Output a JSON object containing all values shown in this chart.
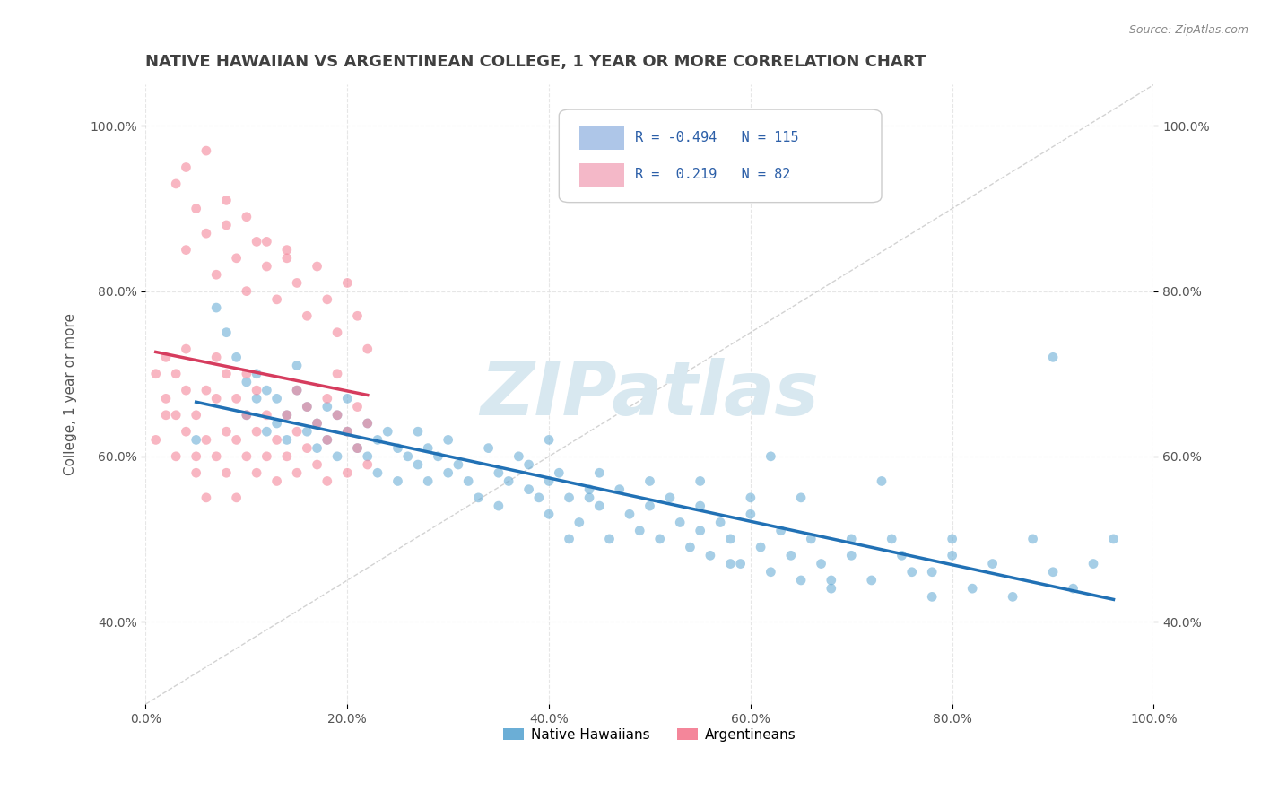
{
  "title": "NATIVE HAWAIIAN VS ARGENTINEAN COLLEGE, 1 YEAR OR MORE CORRELATION CHART",
  "source_text": "Source: ZipAtlas.com",
  "xlabel_bottom": "",
  "ylabel": "College, 1 year or more",
  "x_tick_labels": [
    "0.0%",
    "20.0%",
    "40.0%",
    "60.0%",
    "80.0%",
    "100.0%"
  ],
  "y_tick_labels_left": [
    "40.0%",
    "60.0%",
    "80.0%",
    "100.0%"
  ],
  "y_tick_labels_right": [
    "40.0%",
    "60.0%",
    "80.0%",
    "100.0%"
  ],
  "legend_labels": [
    "Native Hawaiians",
    "Argentineans"
  ],
  "legend_box_colors": [
    "#aec6e8",
    "#f4b8c8"
  ],
  "R_blue": -0.494,
  "N_blue": 115,
  "R_pink": 0.219,
  "N_pink": 82,
  "blue_color": "#6baed6",
  "pink_color": "#f4869a",
  "blue_line_color": "#2171b5",
  "pink_line_color": "#d63c5e",
  "ref_line_color": "#c0c0c0",
  "grid_color": "#e0e0e0",
  "title_color": "#404040",
  "legend_text_color": "#2c5fa8",
  "background_color": "#ffffff",
  "watermark_text": "ZIPatlas",
  "watermark_color": "#d8e8f0",
  "xlim": [
    0.0,
    1.0
  ],
  "ylim": [
    0.3,
    1.05
  ],
  "blue_scatter_x": [
    0.05,
    0.07,
    0.08,
    0.09,
    0.1,
    0.1,
    0.11,
    0.11,
    0.12,
    0.12,
    0.13,
    0.13,
    0.14,
    0.14,
    0.15,
    0.15,
    0.16,
    0.16,
    0.17,
    0.17,
    0.18,
    0.18,
    0.19,
    0.19,
    0.2,
    0.2,
    0.21,
    0.22,
    0.22,
    0.23,
    0.23,
    0.24,
    0.25,
    0.25,
    0.26,
    0.27,
    0.27,
    0.28,
    0.28,
    0.29,
    0.3,
    0.3,
    0.31,
    0.32,
    0.33,
    0.34,
    0.35,
    0.35,
    0.36,
    0.37,
    0.38,
    0.38,
    0.39,
    0.4,
    0.4,
    0.41,
    0.42,
    0.43,
    0.44,
    0.45,
    0.45,
    0.46,
    0.47,
    0.48,
    0.49,
    0.5,
    0.5,
    0.51,
    0.52,
    0.53,
    0.54,
    0.55,
    0.55,
    0.56,
    0.57,
    0.58,
    0.59,
    0.6,
    0.61,
    0.62,
    0.63,
    0.64,
    0.65,
    0.66,
    0.67,
    0.68,
    0.7,
    0.72,
    0.74,
    0.76,
    0.78,
    0.8,
    0.82,
    0.84,
    0.86,
    0.88,
    0.9,
    0.92,
    0.94,
    0.96,
    0.4,
    0.42,
    0.44,
    0.55,
    0.58,
    0.6,
    0.62,
    0.65,
    0.68,
    0.7,
    0.73,
    0.75,
    0.78,
    0.8,
    0.9
  ],
  "blue_scatter_y": [
    0.62,
    0.78,
    0.75,
    0.72,
    0.69,
    0.65,
    0.67,
    0.7,
    0.63,
    0.68,
    0.64,
    0.67,
    0.65,
    0.62,
    0.68,
    0.71,
    0.63,
    0.66,
    0.64,
    0.61,
    0.66,
    0.62,
    0.6,
    0.65,
    0.63,
    0.67,
    0.61,
    0.64,
    0.6,
    0.62,
    0.58,
    0.63,
    0.61,
    0.57,
    0.6,
    0.63,
    0.59,
    0.61,
    0.57,
    0.6,
    0.58,
    0.62,
    0.59,
    0.57,
    0.55,
    0.61,
    0.58,
    0.54,
    0.57,
    0.6,
    0.56,
    0.59,
    0.55,
    0.57,
    0.53,
    0.58,
    0.55,
    0.52,
    0.56,
    0.54,
    0.58,
    0.5,
    0.56,
    0.53,
    0.51,
    0.54,
    0.57,
    0.5,
    0.55,
    0.52,
    0.49,
    0.54,
    0.51,
    0.48,
    0.52,
    0.5,
    0.47,
    0.53,
    0.49,
    0.46,
    0.51,
    0.48,
    0.45,
    0.5,
    0.47,
    0.44,
    0.48,
    0.45,
    0.5,
    0.46,
    0.43,
    0.48,
    0.44,
    0.47,
    0.43,
    0.5,
    0.46,
    0.44,
    0.47,
    0.5,
    0.62,
    0.5,
    0.55,
    0.57,
    0.47,
    0.55,
    0.6,
    0.55,
    0.45,
    0.5,
    0.57,
    0.48,
    0.46,
    0.5,
    0.72
  ],
  "pink_scatter_x": [
    0.01,
    0.01,
    0.02,
    0.02,
    0.02,
    0.03,
    0.03,
    0.03,
    0.04,
    0.04,
    0.04,
    0.05,
    0.05,
    0.05,
    0.06,
    0.06,
    0.06,
    0.07,
    0.07,
    0.07,
    0.08,
    0.08,
    0.08,
    0.09,
    0.09,
    0.09,
    0.1,
    0.1,
    0.1,
    0.11,
    0.11,
    0.11,
    0.12,
    0.12,
    0.13,
    0.13,
    0.14,
    0.14,
    0.15,
    0.15,
    0.15,
    0.16,
    0.16,
    0.17,
    0.17,
    0.18,
    0.18,
    0.18,
    0.19,
    0.19,
    0.2,
    0.2,
    0.21,
    0.21,
    0.22,
    0.22,
    0.03,
    0.04,
    0.05,
    0.06,
    0.07,
    0.08,
    0.09,
    0.1,
    0.11,
    0.12,
    0.13,
    0.14,
    0.15,
    0.16,
    0.17,
    0.18,
    0.19,
    0.2,
    0.21,
    0.22,
    0.04,
    0.06,
    0.08,
    0.1,
    0.12,
    0.14
  ],
  "pink_scatter_y": [
    0.62,
    0.7,
    0.67,
    0.65,
    0.72,
    0.6,
    0.65,
    0.7,
    0.63,
    0.68,
    0.73,
    0.58,
    0.65,
    0.6,
    0.62,
    0.68,
    0.55,
    0.67,
    0.6,
    0.72,
    0.58,
    0.63,
    0.7,
    0.62,
    0.67,
    0.55,
    0.6,
    0.65,
    0.7,
    0.58,
    0.63,
    0.68,
    0.6,
    0.65,
    0.62,
    0.57,
    0.65,
    0.6,
    0.68,
    0.63,
    0.58,
    0.66,
    0.61,
    0.64,
    0.59,
    0.67,
    0.62,
    0.57,
    0.65,
    0.7,
    0.63,
    0.58,
    0.66,
    0.61,
    0.64,
    0.59,
    0.93,
    0.85,
    0.9,
    0.87,
    0.82,
    0.88,
    0.84,
    0.8,
    0.86,
    0.83,
    0.79,
    0.85,
    0.81,
    0.77,
    0.83,
    0.79,
    0.75,
    0.81,
    0.77,
    0.73,
    0.95,
    0.97,
    0.91,
    0.89,
    0.86,
    0.84
  ]
}
